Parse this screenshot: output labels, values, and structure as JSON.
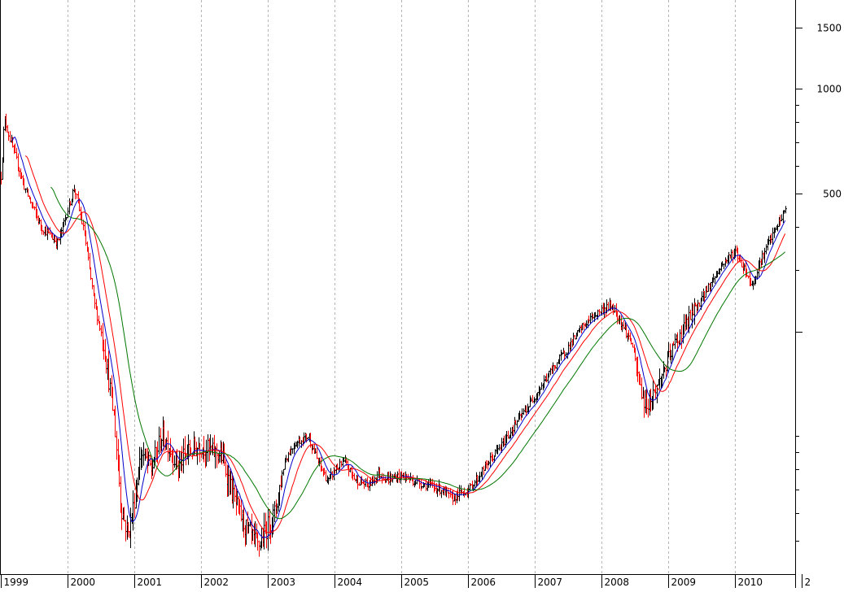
{
  "colors": {
    "background": "#ffffff",
    "grid": "#b4b4b4",
    "axis": "#000000",
    "bar_up": "#000000",
    "bar_down": "#ff0000",
    "ma_short": "#0000cc",
    "ma_medium": "#ff0000",
    "ma_long": "#007700"
  },
  "chart_data": {
    "type": "line",
    "title": "",
    "xlabel": "",
    "ylabel": "",
    "y_scale": "log",
    "ylim": [
      40,
      1800
    ],
    "x_ticks": [
      "1999",
      "2000",
      "2001",
      "2002",
      "2003",
      "2004",
      "2005",
      "2006",
      "2007",
      "2008",
      "2009",
      "2010",
      "2"
    ],
    "y_ticks": [
      {
        "value": 1500,
        "label": "1500"
      },
      {
        "value": 1000,
        "label": "1000"
      },
      {
        "value": 500,
        "label": "500"
      },
      {
        "value": 200,
        "label": ""
      }
    ],
    "grid": "vertical dashed at year boundaries",
    "legend": "none",
    "price_anchors": {
      "x": [
        1999.0,
        1999.05,
        1999.15,
        1999.35,
        1999.6,
        1999.85,
        2000.1,
        2000.25,
        2000.4,
        2000.55,
        2000.7,
        2000.8,
        2000.9,
        2000.97,
        2001.1,
        2001.25,
        2001.4,
        2001.5,
        2001.65,
        2001.8,
        2002.0,
        2002.15,
        2002.3,
        2002.5,
        2002.65,
        2002.85,
        2003.0,
        2003.1,
        2003.25,
        2003.4,
        2003.6,
        2003.75,
        2003.9,
        2004.0,
        2004.15,
        2004.3,
        2004.5,
        2004.65,
        2004.8,
        2005.0,
        2005.2,
        2005.4,
        2005.6,
        2005.75,
        2005.85,
        2006.0,
        2006.15,
        2006.3,
        2006.5,
        2006.7,
        2006.9,
        2007.1,
        2007.3,
        2007.5,
        2007.7,
        2007.85,
        2008.0,
        2008.15,
        2008.3,
        2008.45,
        2008.55,
        2008.65,
        2008.8,
        2008.95,
        2009.1,
        2009.3,
        2009.5,
        2009.7,
        2009.85,
        2010.0,
        2010.15,
        2010.25,
        2010.35,
        2010.5,
        2010.65,
        2010.75
      ],
      "y": [
        560,
        820,
        700,
        520,
        400,
        360,
        520,
        380,
        240,
        180,
        110,
        62,
        52,
        60,
        90,
        80,
        100,
        95,
        82,
        90,
        94,
        90,
        88,
        65,
        55,
        48,
        55,
        60,
        85,
        95,
        100,
        84,
        74,
        80,
        84,
        75,
        72,
        78,
        75,
        77,
        74,
        72,
        70,
        66,
        68,
        70,
        76,
        84,
        94,
        108,
        122,
        140,
        160,
        180,
        205,
        220,
        230,
        238,
        210,
        185,
        145,
        122,
        135,
        158,
        185,
        215,
        250,
        290,
        320,
        340,
        300,
        270,
        310,
        360,
        410,
        450
      ]
    }
  }
}
